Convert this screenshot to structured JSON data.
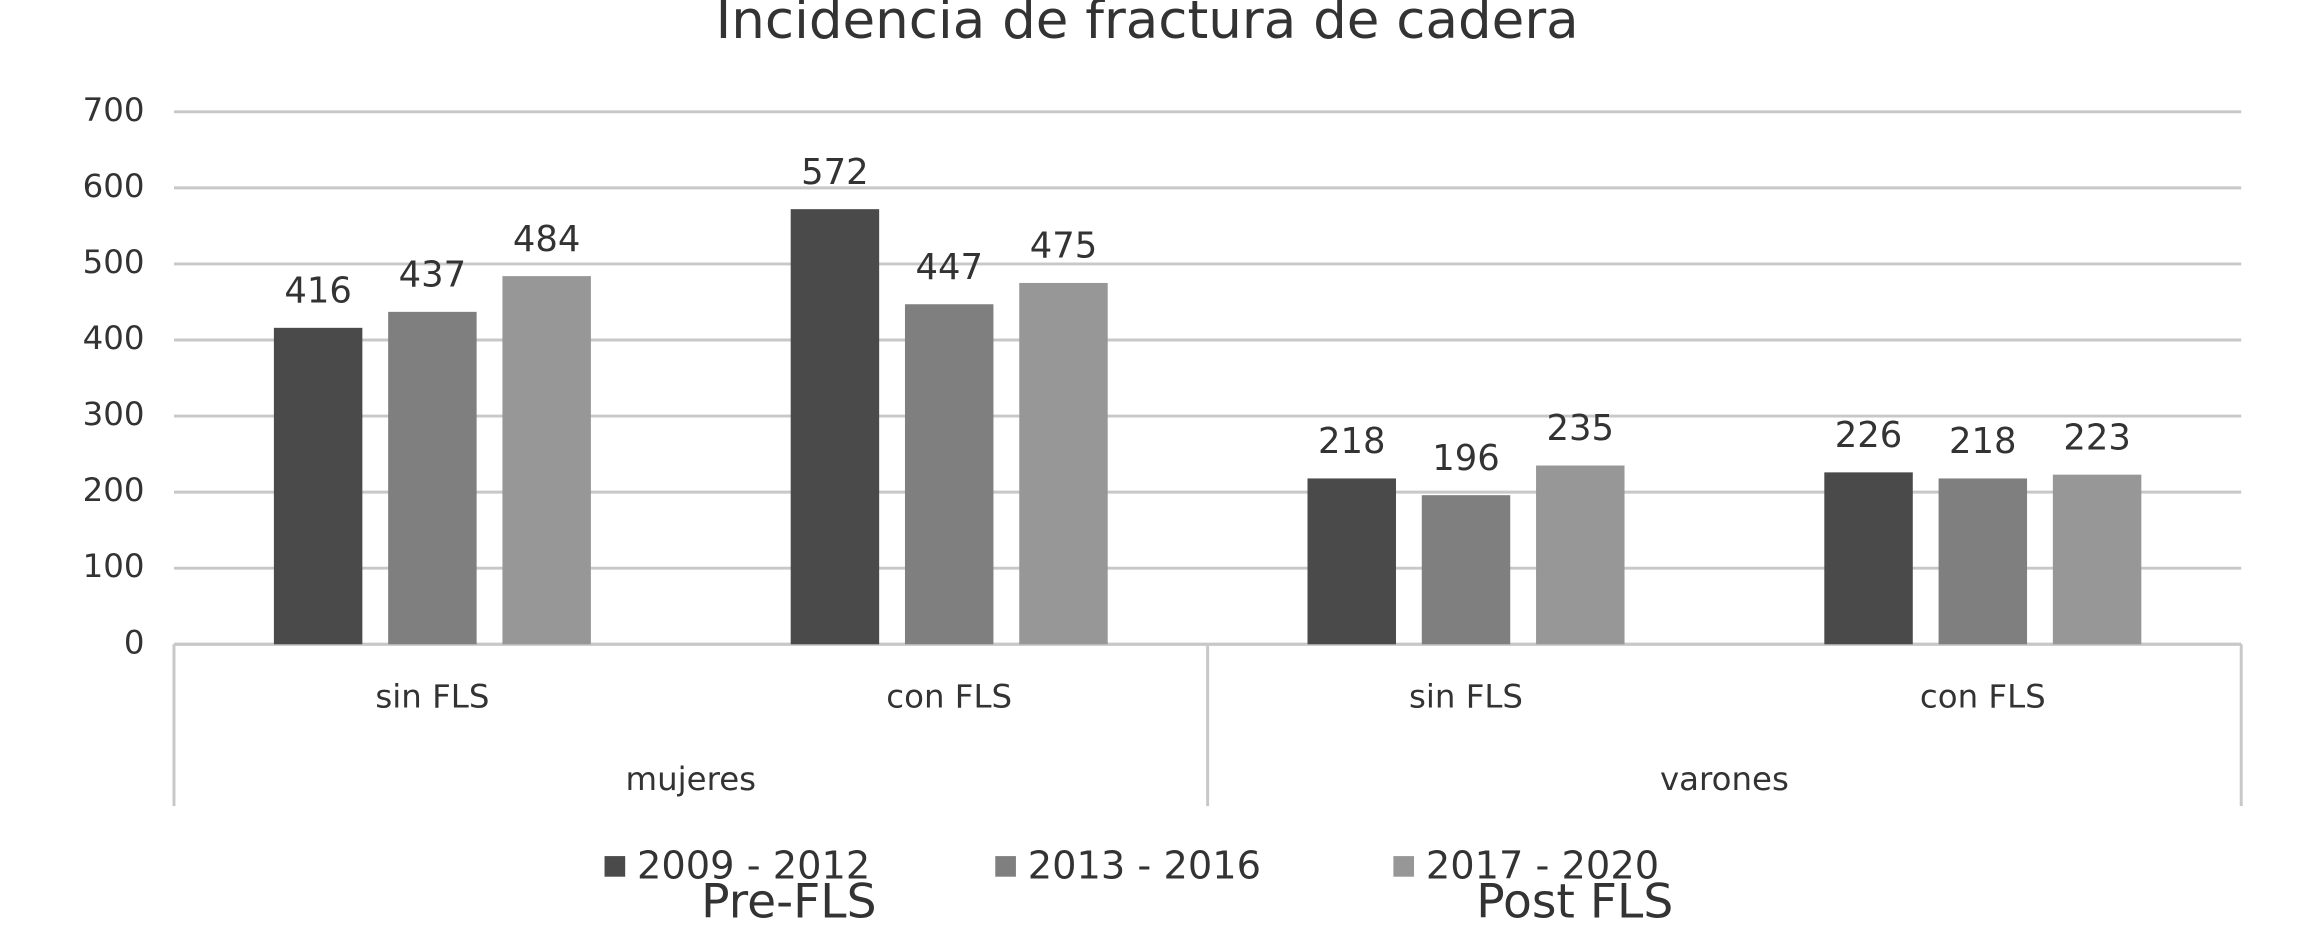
{
  "chart_data": {
    "type": "bar",
    "title": "Incidencia de fractura de cadera",
    "categories": [
      "sin FLS",
      "con FLS",
      "sin FLS",
      "con FLS"
    ],
    "category_groups": [
      "mujeres",
      "mujeres",
      "varones",
      "varones"
    ],
    "series": [
      {
        "name": "2009 - 2012",
        "color": "#4a4a4a",
        "values": [
          416,
          572,
          218,
          226
        ]
      },
      {
        "name": "2013 - 2016",
        "color": "#7f7f7f",
        "values": [
          437,
          447,
          196,
          218
        ]
      },
      {
        "name": "2017 - 2020",
        "color": "#979797",
        "values": [
          484,
          475,
          235,
          223
        ]
      }
    ],
    "ylim": [
      0,
      700
    ],
    "yticks": [
      0,
      100,
      200,
      300,
      400,
      500,
      600,
      700
    ],
    "grid": true,
    "legend": "bottom",
    "annotations": [
      "Pre-FLS",
      "Post FLS"
    ]
  }
}
